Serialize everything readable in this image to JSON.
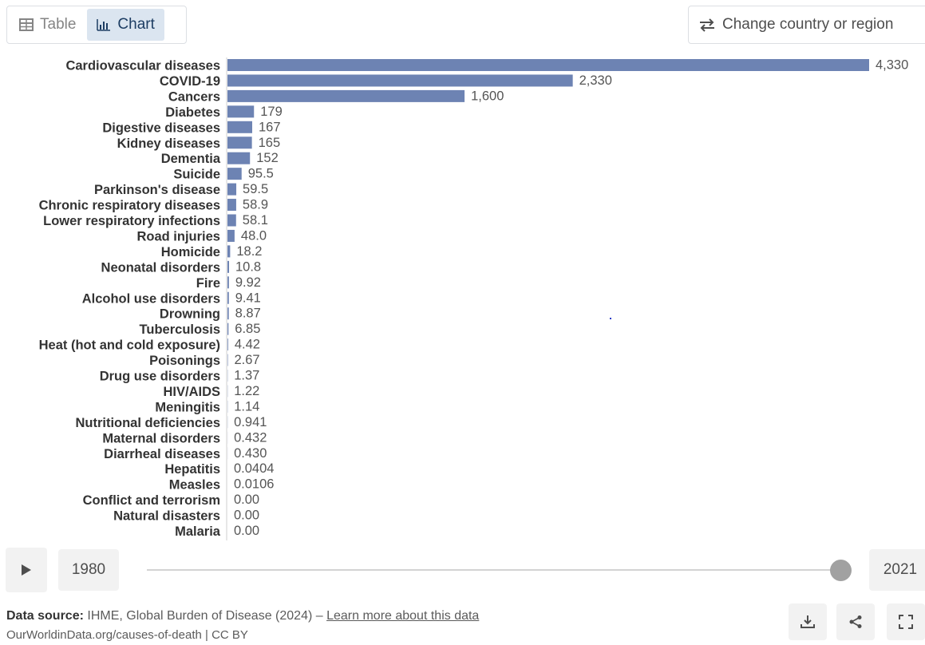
{
  "tabs": [
    {
      "label": "Table",
      "icon": "table-icon"
    },
    {
      "label": "Chart",
      "icon": "bar-chart-icon"
    }
  ],
  "change_country_label": "Change country or region",
  "timeline": {
    "start_year": "1980",
    "end_year": "2021",
    "position_fraction": 1.0
  },
  "footer": {
    "source_label": "Data source:",
    "source_text": "IHME, Global Burden of Disease (2024) –",
    "learn_more": "Learn more about this data",
    "attribution": "OurWorldinData.org/causes-of-death | CC BY"
  },
  "icons": {
    "play": "play-icon",
    "download": "download-icon",
    "share": "share-icon",
    "fullscreen": "fullscreen-icon"
  },
  "colors": {
    "bar": "#6d83b3",
    "active_tab_bg": "#dbe5f0",
    "active_tab_text": "#1d3d63",
    "label_text": "#333333",
    "value_text": "#555555"
  },
  "chart_data": {
    "type": "bar",
    "orientation": "horizontal",
    "title": "",
    "xlabel": "",
    "ylabel": "",
    "xlim": [
      0,
      4330
    ],
    "grid": false,
    "legend": "none",
    "categories": [
      "Cardiovascular diseases",
      "COVID-19",
      "Cancers",
      "Diabetes",
      "Digestive diseases",
      "Kidney diseases",
      "Dementia",
      "Suicide",
      "Parkinson's disease",
      "Chronic respiratory diseases",
      "Lower respiratory infections",
      "Road injuries",
      "Homicide",
      "Neonatal disorders",
      "Fire",
      "Alcohol use disorders",
      "Drowning",
      "Tuberculosis",
      "Heat (hot and cold exposure)",
      "Poisonings",
      "Drug use disorders",
      "HIV/AIDS",
      "Meningitis",
      "Nutritional deficiencies",
      "Maternal disorders",
      "Diarrheal diseases",
      "Hepatitis",
      "Measles",
      "Conflict and terrorism",
      "Natural disasters",
      "Malaria"
    ],
    "values": [
      4330,
      2330,
      1600,
      179,
      167,
      165,
      152,
      95.5,
      59.5,
      58.9,
      58.1,
      48.0,
      18.2,
      10.8,
      9.92,
      9.41,
      8.87,
      6.85,
      4.42,
      2.67,
      1.37,
      1.22,
      1.14,
      0.941,
      0.432,
      0.43,
      0.0404,
      0.0106,
      0,
      0,
      0
    ],
    "value_labels": [
      "4,330",
      "2,330",
      "1,600",
      "179",
      "167",
      "165",
      "152",
      "95.5",
      "59.5",
      "58.9",
      "58.1",
      "48.0",
      "18.2",
      "10.8",
      "9.92",
      "9.41",
      "8.87",
      "6.85",
      "4.42",
      "2.67",
      "1.37",
      "1.22",
      "1.14",
      "0.941",
      "0.432",
      "0.430",
      "0.0404",
      "0.0106",
      "0.00",
      "0.00",
      "0.00"
    ]
  }
}
